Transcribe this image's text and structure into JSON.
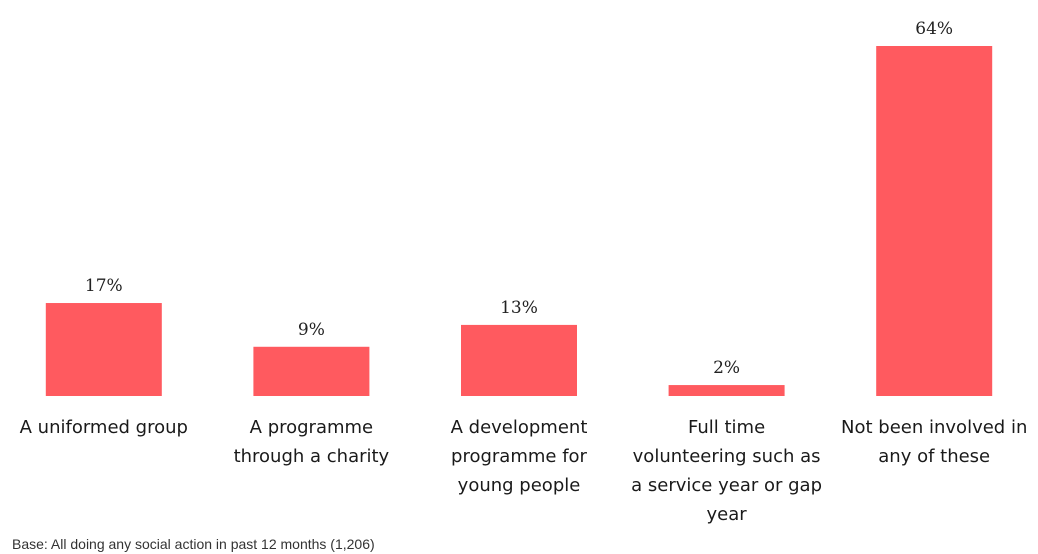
{
  "chart_data": {
    "type": "bar",
    "categories": [
      "A uniformed group",
      "A programme through a charity",
      "A development programme for young people",
      "Full time volunteering such as a service year or gap year",
      "Not been involved in any of these"
    ],
    "category_lines": [
      [
        "A uniformed group"
      ],
      [
        "A programme",
        "through a charity"
      ],
      [
        "A development",
        "programme for",
        "young people"
      ],
      [
        "Full time",
        "volunteering such as",
        "a service year or gap",
        "year"
      ],
      [
        "Not been involved in",
        "any of these"
      ]
    ],
    "values": [
      17,
      9,
      13,
      2,
      64
    ],
    "value_labels": [
      "17%",
      "9%",
      "13%",
      "2%",
      "64%"
    ],
    "ylim": [
      0,
      64
    ],
    "grid": false,
    "bar_color": "#FF5A5F"
  },
  "footnote": "Base: All doing any social action in past 12 months (1,206)"
}
